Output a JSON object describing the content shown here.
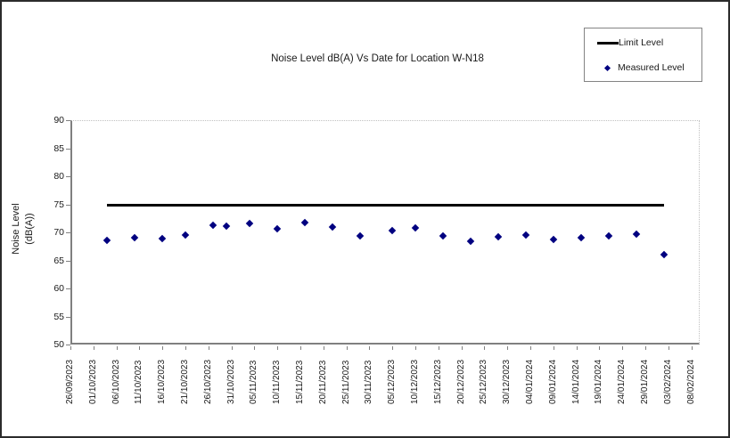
{
  "chart": {
    "title": "Noise Level dB(A) Vs Date for Location W-N18",
    "ylabel_line1": "Noise Level",
    "ylabel_line2": "(dB(A))",
    "legend": {
      "limit_label": "Limit Level",
      "measured_label": "Measured Level"
    }
  },
  "chart_data": {
    "type": "scatter",
    "title": "Noise Level dB(A) Vs Date for Location W-N18",
    "xlabel": "",
    "ylabel": "Noise Level (dB(A))",
    "ylim": [
      50,
      90
    ],
    "ytick_interval": 5,
    "yticks": [
      90,
      85,
      80,
      75,
      70,
      65,
      60,
      55,
      50
    ],
    "x_ticks": [
      "26/09/2023",
      "01/10/2023",
      "06/10/2023",
      "11/10/2023",
      "16/10/2023",
      "21/10/2023",
      "26/10/2023",
      "31/10/2023",
      "05/11/2023",
      "10/11/2023",
      "15/11/2023",
      "20/11/2023",
      "25/11/2023",
      "30/11/2023",
      "05/12/2023",
      "10/12/2023",
      "15/12/2023",
      "20/12/2023",
      "25/12/2023",
      "30/12/2023",
      "04/01/2024",
      "09/01/2024",
      "14/01/2024",
      "19/01/2024",
      "24/01/2024",
      "29/01/2024",
      "03/02/2024",
      "08/02/2024"
    ],
    "x_tick_interval_days": 5,
    "grid": false,
    "legend_position": "top-right",
    "colors": {
      "limit_line": "#000000",
      "measured_point": "#000080",
      "axis": "#808080"
    },
    "series": [
      {
        "name": "Limit Level",
        "type": "line",
        "color": "#000000",
        "value": 75,
        "x_start": "04/10/2023",
        "x_end": "02/02/2024"
      },
      {
        "name": "Measured Level",
        "type": "scatter",
        "color": "#000080",
        "points": [
          {
            "date": "04/10/2023",
            "value": 68.6
          },
          {
            "date": "10/10/2023",
            "value": 69.1
          },
          {
            "date": "16/10/2023",
            "value": 68.9
          },
          {
            "date": "21/10/2023",
            "value": 69.5
          },
          {
            "date": "27/10/2023",
            "value": 71.3
          },
          {
            "date": "30/10/2023",
            "value": 71.1
          },
          {
            "date": "04/11/2023",
            "value": 71.6
          },
          {
            "date": "10/11/2023",
            "value": 70.7
          },
          {
            "date": "16/11/2023",
            "value": 71.7
          },
          {
            "date": "22/11/2023",
            "value": 70.9
          },
          {
            "date": "28/11/2023",
            "value": 69.3
          },
          {
            "date": "05/12/2023",
            "value": 70.3
          },
          {
            "date": "10/12/2023",
            "value": 70.8
          },
          {
            "date": "16/12/2023",
            "value": 69.4
          },
          {
            "date": "22/12/2023",
            "value": 68.4
          },
          {
            "date": "28/12/2023",
            "value": 69.2
          },
          {
            "date": "03/01/2024",
            "value": 69.6
          },
          {
            "date": "09/01/2024",
            "value": 68.7
          },
          {
            "date": "15/01/2024",
            "value": 69.1
          },
          {
            "date": "21/01/2024",
            "value": 69.3
          },
          {
            "date": "27/01/2024",
            "value": 69.7
          },
          {
            "date": "02/02/2024",
            "value": 66.1
          }
        ]
      }
    ]
  }
}
